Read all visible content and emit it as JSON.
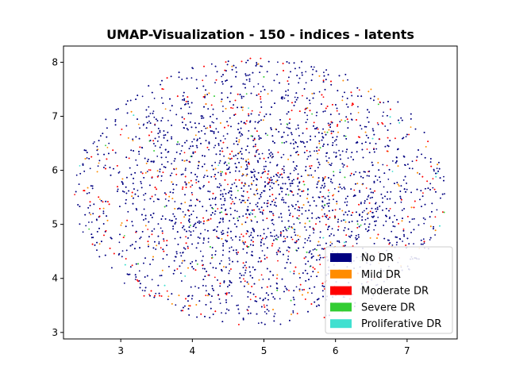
{
  "chart_data": {
    "type": "scatter",
    "title": "UMAP-Visualization - 150 - indices - latents",
    "xlabel": "",
    "ylabel": "",
    "xlim": [
      2.2,
      7.7
    ],
    "ylim": [
      2.88,
      8.3
    ],
    "xticks": [
      3,
      4,
      5,
      6,
      7
    ],
    "yticks": [
      3,
      4,
      5,
      6,
      7,
      8
    ],
    "xtick_labels": [
      "3",
      "4",
      "5",
      "6",
      "7"
    ],
    "ytick_labels": [
      "3",
      "4",
      "5",
      "6",
      "7",
      "8"
    ],
    "grid": false,
    "legend_position": "lower-right",
    "point_cloud": {
      "center": [
        4.95,
        5.6
      ],
      "x_extent": [
        2.35,
        7.55
      ],
      "y_extent": [
        3.1,
        8.05
      ],
      "approximate_point_count": 6000
    },
    "series": [
      {
        "name": "No DR",
        "color": "#000080",
        "share": 0.76
      },
      {
        "name": "Mild DR",
        "color": "#ff8c00",
        "share": 0.07
      },
      {
        "name": "Moderate DR",
        "color": "#ff0000",
        "share": 0.14
      },
      {
        "name": "Severe DR",
        "color": "#32cd32",
        "share": 0.02
      },
      {
        "name": "Proliferative DR",
        "color": "#40e0d0",
        "share": 0.01
      }
    ]
  }
}
